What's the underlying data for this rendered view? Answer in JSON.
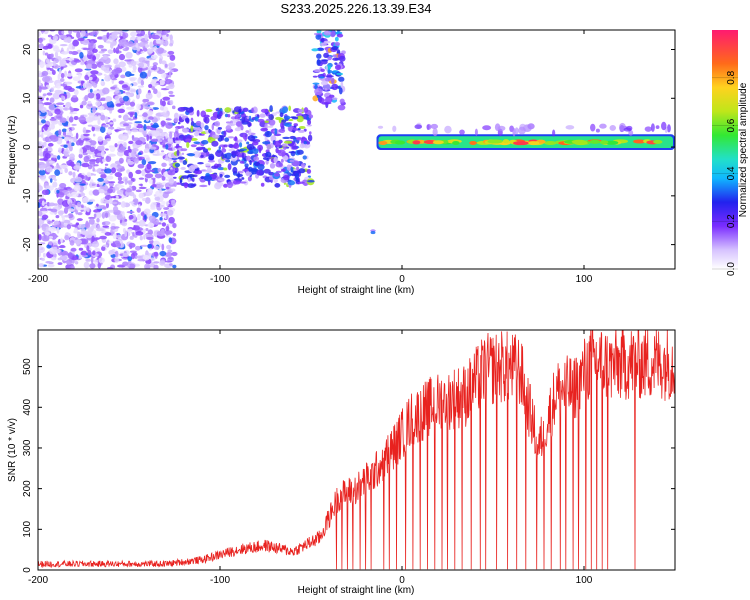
{
  "title": "S233.2025.226.13.39.E34",
  "colors": {
    "snr_line": "#e8221f",
    "spec_purple": "#7a2cff",
    "spec_light": "#d9c8ff"
  },
  "chart_data": [
    {
      "type": "heatmap",
      "name": "spectrogram",
      "xlabel": "Height of straight line (km)",
      "ylabel": "Frequency (Hz)",
      "xlim": [
        -200,
        150
      ],
      "ylim": [
        -25,
        24
      ],
      "xticks": [
        -200,
        -100,
        0,
        100
      ],
      "yticks": [
        -20,
        -10,
        0,
        10,
        20
      ],
      "colorbar": {
        "label": "Normalized spectral amplitude",
        "range": [
          0,
          1
        ],
        "ticks": [
          "0.0",
          "0.2",
          "0.4",
          "0.6",
          "0.8"
        ],
        "tick_values": [
          0.0,
          0.2,
          0.4,
          0.6,
          0.8
        ]
      },
      "features": [
        {
          "name": "broadband noise",
          "x_range": [
            -200,
            -125
          ],
          "f_range": [
            -25,
            24
          ],
          "amplitude": 0.1
        },
        {
          "name": "band noise",
          "x_range": [
            -125,
            -50
          ],
          "f_range": [
            -8,
            8
          ],
          "amplitude": 0.2
        },
        {
          "name": "burst",
          "x_range": [
            -48,
            -32
          ],
          "f_range": [
            8,
            24
          ],
          "amplitude": 0.25
        },
        {
          "name": "spike",
          "x_range": [
            -18,
            -14
          ],
          "f_range": [
            -18,
            -17
          ],
          "amplitude": 0.35
        },
        {
          "name": "carrier",
          "x_range": [
            -14,
            150
          ],
          "f_range": [
            0,
            2
          ],
          "amplitude": 0.85
        }
      ]
    },
    {
      "type": "line",
      "name": "snr",
      "xlabel": "Height of straight line (km)",
      "ylabel": "SNR (10 * v/v)",
      "xlim": [
        -200,
        150
      ],
      "ylim": [
        0,
        590
      ],
      "xticks": [
        -200,
        -100,
        0,
        100
      ],
      "yticks": [
        0,
        100,
        200,
        300,
        400,
        500
      ],
      "trend": {
        "x": [
          -200,
          -130,
          -110,
          -90,
          -75,
          -60,
          -45,
          -35,
          -25,
          -15,
          -5,
          5,
          15,
          25,
          35,
          45,
          55,
          65,
          75,
          85,
          95,
          105,
          115,
          125,
          150
        ],
        "y": [
          15,
          15,
          25,
          50,
          60,
          45,
          80,
          180,
          200,
          240,
          300,
          370,
          400,
          420,
          430,
          490,
          500,
          490,
          300,
          440,
          450,
          520,
          500,
          510,
          510
        ]
      },
      "dropouts_x": [
        -36,
        -33,
        -30,
        -27,
        -23,
        -20,
        -17,
        -10,
        -7,
        -3,
        2,
        6,
        10,
        14,
        18,
        22,
        25,
        29,
        33,
        38,
        43,
        46,
        52,
        58,
        63,
        68,
        74,
        78,
        82,
        87,
        90,
        94,
        97,
        101,
        104,
        107,
        110,
        113,
        128
      ]
    }
  ]
}
